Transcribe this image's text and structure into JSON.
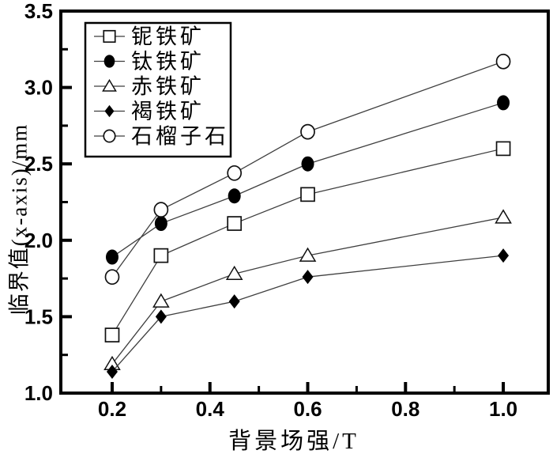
{
  "chart_data": {
    "type": "line",
    "title": "",
    "xlabel": "背景场强/T",
    "ylabel": "临界值(x-axis)/mm",
    "x": [
      0.2,
      0.3,
      0.45,
      0.6,
      1.0
    ],
    "series": [
      {
        "name": "铌铁矿",
        "id": "columbite",
        "marker": "square-open",
        "values": [
          1.38,
          1.9,
          2.11,
          2.3,
          2.6
        ]
      },
      {
        "name": "钛铁矿",
        "id": "ilmenite",
        "marker": "circle-filled",
        "values": [
          1.89,
          2.11,
          2.29,
          2.5,
          2.9
        ]
      },
      {
        "name": "赤铁矿",
        "id": "hematite",
        "marker": "triangle-open",
        "values": [
          1.19,
          1.6,
          1.78,
          1.9,
          2.15
        ]
      },
      {
        "name": "褐铁矿",
        "id": "limonite",
        "marker": "diamond-filled",
        "values": [
          1.14,
          1.5,
          1.6,
          1.76,
          1.9
        ]
      },
      {
        "name": "石榴子石",
        "id": "garnet",
        "marker": "circle-open",
        "values": [
          1.76,
          2.2,
          2.44,
          2.71,
          3.17
        ]
      }
    ],
    "xlim": [
      0.095,
      1.092
    ],
    "ylim": [
      1.0,
      3.5
    ],
    "x_major_ticks": [
      0.2,
      0.4,
      0.6,
      0.8,
      1.0
    ],
    "x_tick_labels": [
      "0.2",
      "0.4",
      "0.6",
      "0.8",
      "1.0"
    ],
    "x_minor_ticks": [
      0.3,
      0.5,
      0.7,
      0.9
    ],
    "y_major_ticks": [
      1.0,
      1.5,
      2.0,
      2.5,
      3.0,
      3.5
    ],
    "y_tick_labels": [
      "1.0",
      "1.5",
      "2.0",
      "2.5",
      "3.0",
      "3.5"
    ],
    "y_minor_ticks": [
      1.25,
      1.75,
      2.25,
      2.75,
      3.25
    ],
    "grid": false,
    "legend_position": "top-left",
    "colors": {
      "frame": "#000000",
      "line": "#3f3f3f",
      "marker_stroke": "#111111",
      "marker_fill_open": "#ffffff",
      "marker_fill_solid": "#000000",
      "background": "#ffffff",
      "text": "#000000"
    }
  }
}
